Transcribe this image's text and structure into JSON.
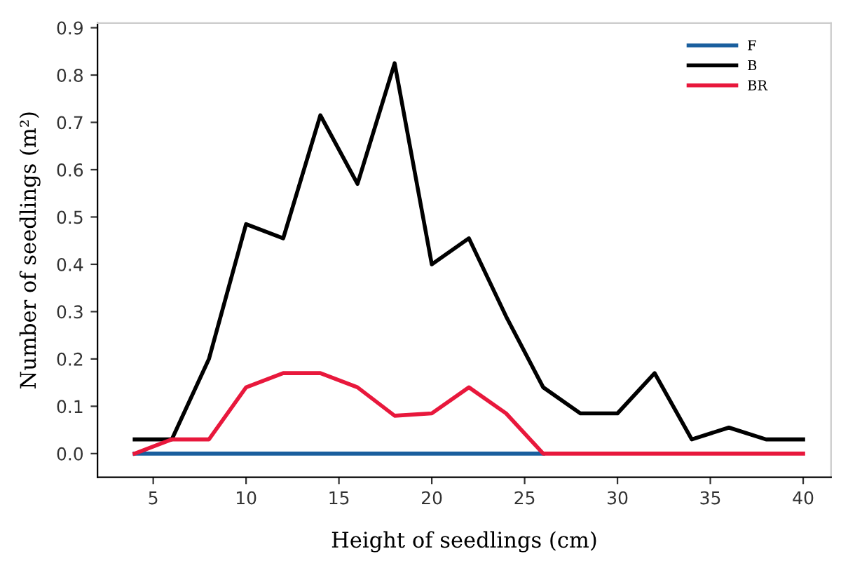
{
  "chart_data": {
    "type": "line",
    "xlabel": "Height of seedlings (cm)",
    "ylabel": "Number of seedlings (m²)",
    "x": [
      4,
      6,
      8,
      10,
      12,
      14,
      16,
      18,
      20,
      22,
      24,
      26,
      28,
      30,
      32,
      34,
      36,
      38,
      40
    ],
    "series": [
      {
        "name": "F",
        "color": "#1a5f9e",
        "values": [
          0,
          0,
          0,
          0,
          0,
          0,
          0,
          0,
          0,
          0,
          0,
          0,
          null,
          null,
          null,
          null,
          null,
          null,
          null
        ]
      },
      {
        "name": "B",
        "color": "#000000",
        "values": [
          0.03,
          0.03,
          0.2,
          0.485,
          0.455,
          0.715,
          0.57,
          0.825,
          0.4,
          0.455,
          0.29,
          0.14,
          0.085,
          0.085,
          0.17,
          0.03,
          0.055,
          0.03,
          0.03
        ]
      },
      {
        "name": "BR",
        "color": "#e8183c",
        "values": [
          0,
          0.03,
          0.03,
          0.14,
          0.17,
          0.17,
          0.14,
          0.08,
          0.085,
          0.14,
          0.085,
          0,
          0,
          0,
          0,
          0,
          0,
          0,
          0
        ]
      }
    ],
    "xlim": [
      2,
      41.5
    ],
    "xticks": [
      5,
      10,
      15,
      20,
      25,
      30,
      35,
      40
    ],
    "ylim": [
      -0.05,
      0.91
    ],
    "yticks": [
      {
        "value": 0,
        "label": "0.0"
      },
      0.1,
      0.2,
      0.3,
      0.4,
      0.5,
      0.6,
      0.7,
      0.8,
      0.9
    ],
    "grid": false,
    "legend": "top right",
    "marker": "none",
    "line_style": "solid"
  }
}
